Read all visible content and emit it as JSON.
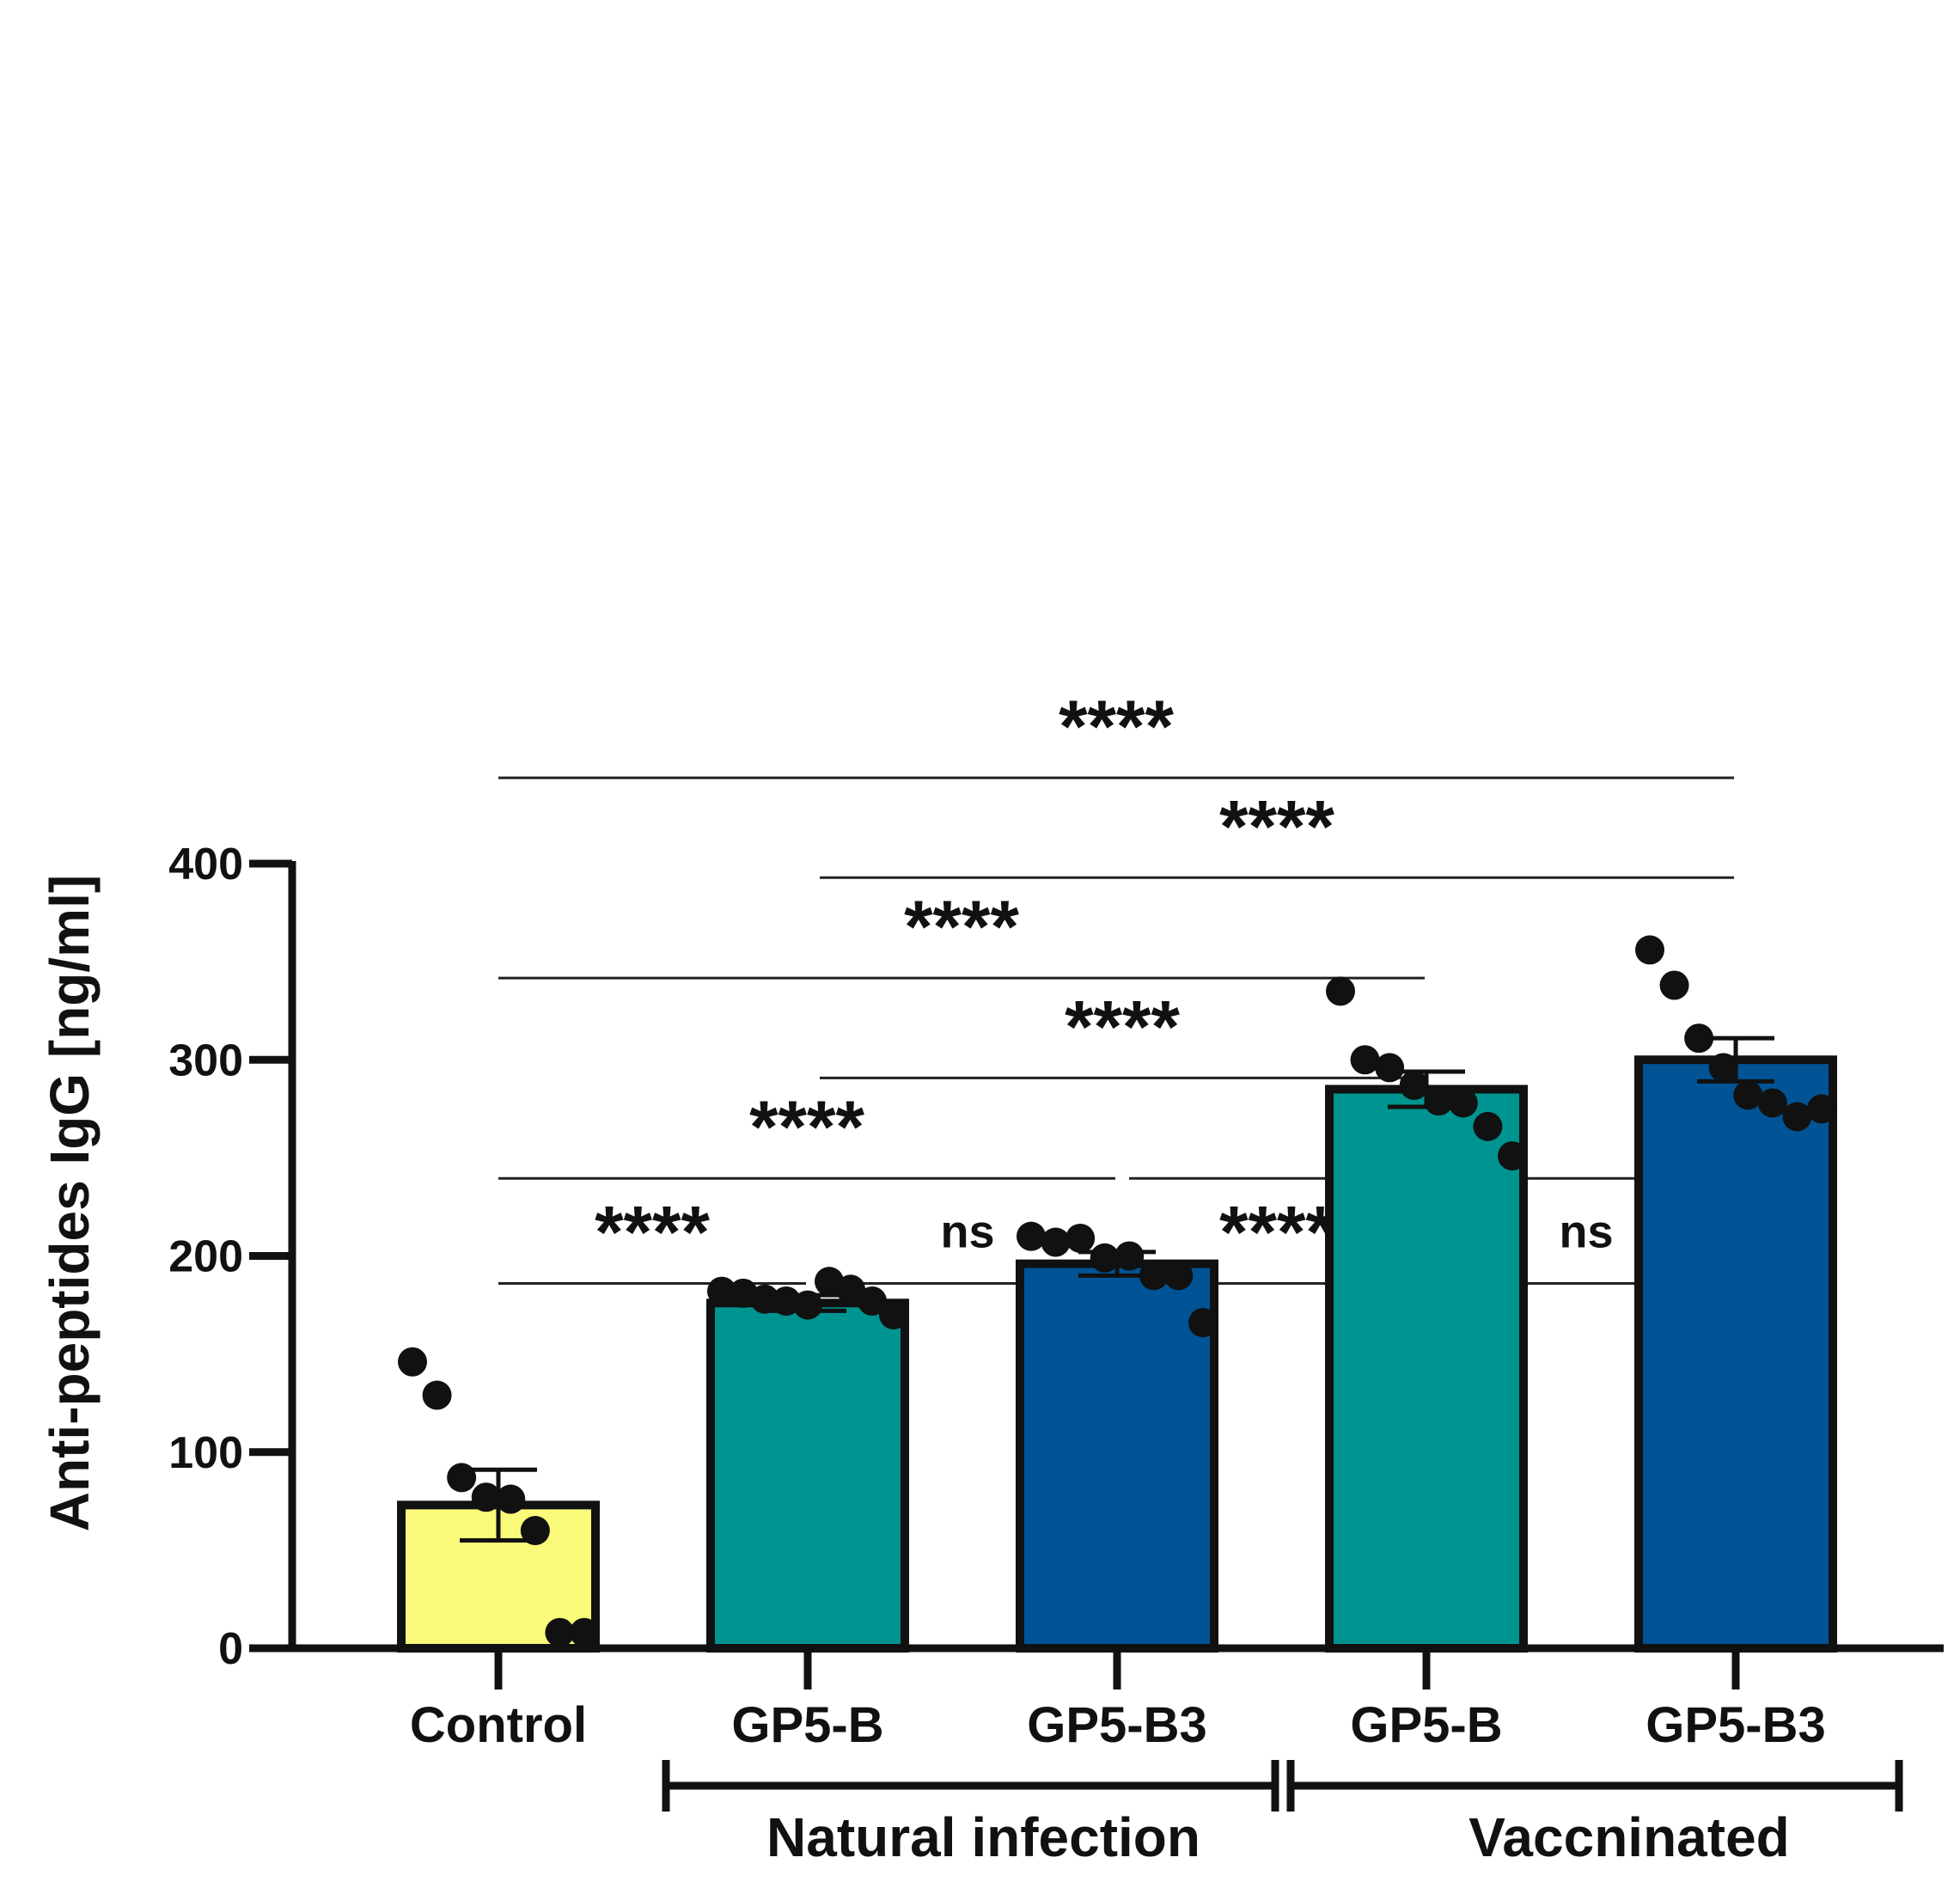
{
  "chart_data": {
    "type": "bar",
    "title": "",
    "xlabel": "",
    "ylabel": "Anti-peptides IgG [ng/ml]",
    "ylim": [
      0,
      400
    ],
    "yticks": [
      0,
      100,
      200,
      300,
      400
    ],
    "ytick_labels": [
      "0",
      "100",
      "200",
      "300",
      "400"
    ],
    "categories": [
      "Control",
      "GP5-B",
      "GP5-B3",
      "GP5-B",
      "GP5-B3"
    ],
    "values": [
      73,
      176,
      196,
      285,
      300
    ],
    "sem": [
      18,
      4,
      6,
      9,
      11
    ],
    "colors": [
      "#fafa7a",
      "#009490",
      "#005496",
      "#009490",
      "#005496"
    ],
    "points": [
      [
        146,
        129,
        87,
        77,
        76,
        60,
        8,
        8
      ],
      [
        182,
        181,
        178,
        177,
        175,
        187,
        183,
        177,
        170
      ],
      [
        210,
        207,
        209,
        199,
        200,
        190,
        190,
        166
      ],
      [
        335,
        300,
        296,
        287,
        279,
        278,
        266,
        251
      ],
      [
        356,
        338,
        311,
        296,
        282,
        278,
        271,
        275
      ]
    ],
    "groups": [
      {
        "label": "Natural infection",
        "from": 1,
        "to": 2
      },
      {
        "label": "Vaccninated",
        "from": 3,
        "to": 4
      }
    ],
    "comparisons": [
      {
        "from": 0,
        "to": 4,
        "label": "****"
      },
      {
        "from": 1,
        "to": 4,
        "label": "****"
      },
      {
        "from": 0,
        "to": 3,
        "label": "****"
      },
      {
        "from": 1,
        "to": 3,
        "label": "****"
      },
      {
        "from": 0,
        "to": 2,
        "label": "****"
      },
      {
        "from": 2,
        "to": 4,
        "label": "****"
      },
      {
        "from": 0,
        "to": 1,
        "label": "****"
      },
      {
        "from": 1,
        "to": 2,
        "label": "ns"
      },
      {
        "from": 2,
        "to": 3,
        "label": "****"
      },
      {
        "from": 3,
        "to": 4,
        "label": "ns"
      }
    ]
  }
}
